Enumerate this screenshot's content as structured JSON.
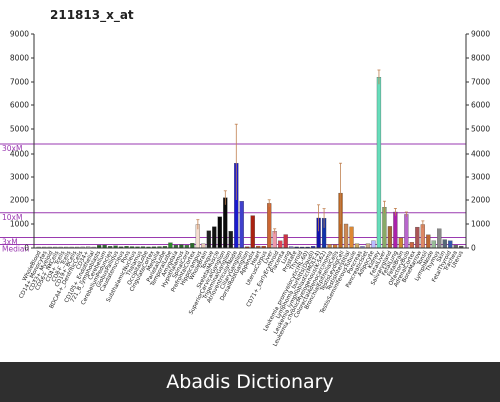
{
  "chart_data": {
    "type": "bar",
    "title": "211813_x_at",
    "y_scale": "non-linear (log-like)",
    "ylim": [
      0,
      9000
    ],
    "y_ticks": [
      "0",
      "1000",
      "2000",
      "3000",
      "4000",
      "5000",
      "6000",
      "7000",
      "8000",
      "9000"
    ],
    "reference_lines": [
      {
        "label": "30xM",
        "value": 4400,
        "color": "#9a3ab0"
      },
      {
        "label": "10xM",
        "value": 1467,
        "color": "#9a3ab0"
      },
      {
        "label": "3xM",
        "value": 440,
        "color": "#9a3ab0"
      },
      {
        "label": "Median",
        "value": 147,
        "color": "#9a3ab0"
      }
    ],
    "categories": [
      "WholeBlood",
      "CD14+_Monocytes",
      "CD33+_Myeloid",
      "CD56+_NKCells",
      "CD4+_Tcells",
      "CD8+_Tcells",
      "CD19+_BCells",
      "BDCA4+_DentriticCells",
      "CD34+",
      "CD105+_Endothelial",
      "721_B_lymphoblasts",
      "Cerebellum",
      "CerebellumPeduncles",
      "GlobusPallidus",
      "Caudatenucleus",
      "Pons",
      "SubthalamicNucleus",
      "Thalamus",
      "OccipitalLobe",
      "CingulateCortex",
      "Medulla",
      "ParietalLobe",
      "TemporalLobe",
      "Amygdala",
      "Hypothalamus",
      "SpinalCord",
      "PrefrontalCortex",
      "Hippocampus",
      "WholeBrain",
      "Tongue",
      "SkeletalMuscle",
      "SuperiorCervicalGanglion",
      "TrigeminalGanglion",
      "DorsalRootGanglion",
      "AtrioventricularNode",
      "CiliaryGanglion",
      "Appendix",
      "Heart",
      "Uterus",
      "UterusCorpus",
      "Liver",
      "CD71+_EarlyErythroid",
      "Lung",
      "Placenta",
      "Thyroid",
      "Prostate",
      "FetalThyroid",
      "Leukemia_promyelocytic(HL-60)",
      "Leukemia_lymphoblastic(MOLT-4)",
      "Lymphoma_burkitts(Daudi)",
      "Lymphoma_burkitts(Raji)",
      "Leukemia_chronicMyelogenous(K-562)",
      "Colorectaladenocarcinoma",
      "BronchialEpithelialCells",
      "SmoothMuscle",
      "TestisLeydigCell",
      "TestisInterstitial",
      "TestisGermCell",
      "TestisSeminiferousTubule",
      "Testis",
      "Pancreas",
      "PancreaticIslet",
      "Adipocyte",
      "Kidney",
      "FetalLiver",
      "FetalLung",
      "Adrenalgland",
      "Salivarygland",
      "FetalBrain",
      "OlfactoryBulb",
      "AdrenalCortex",
      "BoneMarrow",
      "Tonsil",
      "LymphNode",
      "Thymus",
      "Skin",
      "OriginalLobe",
      "Trachea"
    ],
    "visible_labels": [
      "WholeBlood",
      "CD14+_Monocytes",
      "CD33+_Myeloid",
      "CD56+_NKCells",
      "CD4+_Tcells",
      "CD8+_Tcells",
      "CD19+_BCells",
      "BDCA4+_DentriticCells",
      "CD34+",
      "CD105+_Endothelial",
      "721_B_lymphoblasts",
      "Cerebellum",
      "CerebellumPeduncles",
      "GlobusPallidus",
      "Caudatenucleus",
      "Pons",
      "SubthalamicNucleus",
      "Thalamus",
      "OccipitalLobe",
      "CingulateCortex",
      "Medulla",
      "ParietalLobe",
      "TemporalLobe",
      "Amygdala",
      "Hypothalamus",
      "SpinalCord",
      "PrefrontalCortex",
      "Hippocampus",
      "WholeBrain",
      "Tongue",
      "SkeletalMuscle",
      "SuperiorCervicalGanglion",
      "TrigeminalGanglion",
      "AtrioventricularNode",
      "CiliaryGanglion",
      "DorsalRootGanglion",
      "Appendix",
      "Heart",
      "UterusCorpus",
      "Liver",
      "CD71+_EarlyErythroid",
      "Placenta",
      "Lung",
      "Prostate",
      "Thyroid",
      "Leukemia_promyelocytic(HL-60)",
      "Lymphoma_burkitts(Daudi)",
      "Leukemia_lymphoblastic(MOLT-4)",
      "Leukemia_chronicMyelogenous(K-562)",
      "ColorectalAdenocarcinoma",
      "BronchialEpithelialCells",
      "TestisLeydigCell",
      "TestisInterstitial",
      "TestisSeminiferousTubule",
      "Pancreas",
      "PancreaticIslet",
      "Adipocyte",
      "Kidney",
      "FetalLiver",
      "Salivarygland",
      "FetalLung",
      "FetalBrain",
      "OlfactoryBulb",
      "AdrenalCortex",
      "BoneMarrow",
      "Tonsil",
      "LymphNode",
      "Thymus",
      "Skin",
      "FetalThyroid",
      "Trachea",
      "Uterus"
    ],
    "values": [
      40,
      25,
      30,
      30,
      35,
      30,
      35,
      30,
      45,
      50,
      30,
      110,
      120,
      70,
      90,
      55,
      75,
      60,
      50,
      60,
      45,
      55,
      60,
      70,
      220,
      120,
      140,
      115,
      200,
      980,
      180,
      720,
      890,
      1300,
      2100,
      700,
      3600,
      1950,
      55,
      1350,
      80,
      75,
      1860,
      700,
      300,
      560,
      65,
      45,
      35,
      40,
      70,
      1250,
      1240,
      150,
      140,
      2300,
      1000,
      880,
      180,
      70,
      180,
      300,
      7200,
      1700,
      900,
      1500,
      420,
      1400,
      240,
      870,
      980,
      550,
      300,
      800,
      350,
      300,
      120,
      80
    ],
    "errors": [
      0,
      0,
      0,
      0,
      0,
      0,
      0,
      0,
      0,
      0,
      0,
      0,
      0,
      0,
      0,
      0,
      0,
      0,
      0,
      0,
      0,
      0,
      0,
      0,
      0,
      0,
      0,
      0,
      0,
      200,
      0,
      0,
      0,
      0,
      300,
      0,
      1600,
      0,
      0,
      0,
      0,
      0,
      150,
      100,
      0,
      0,
      0,
      0,
      0,
      0,
      0,
      550,
      400,
      0,
      0,
      1300,
      0,
      0,
      0,
      0,
      0,
      0,
      300,
      250,
      0,
      150,
      0,
      100,
      0,
      0,
      150,
      0,
      0,
      0,
      0,
      0,
      0,
      0
    ],
    "colors": [
      "#cccccc",
      "#cccccc",
      "#cccccc",
      "#cccccc",
      "#cccccc",
      "#cccccc",
      "#cccccc",
      "#cccccc",
      "#cccccc",
      "#cccccc",
      "#cccccc",
      "#1f5f1f",
      "#2a6a2a",
      "#336633",
      "#2e6e2e",
      "#2a5a2a",
      "#337733",
      "#2a7a2a",
      "#2f6f2f",
      "#3a7a3a",
      "#2c6c2c",
      "#2b6b2b",
      "#3a7a3a",
      "#2f6f2f",
      "#2a8a2a",
      "#3a6a3a",
      "#2a6a2a",
      "#3a7a3a",
      "#2a6a2a",
      "#f5ddd0",
      "#e8c8b8",
      "#222222",
      "#111111",
      "#050505",
      "#0a0a0a",
      "#1a1a1a",
      "#1a1acc",
      "#4040cc",
      "#bb3311",
      "#aa2211",
      "#cc5522",
      "#cc4411",
      "#cc6633",
      "#ee99aa",
      "#dd4455",
      "#cc3344",
      "#aaaaff",
      "#2222aa",
      "#3333bb",
      "#2222aa",
      "#2222bb",
      "#1111aa",
      "#1133aa",
      "#cc8844",
      "#cc7733",
      "#bb6622",
      "#cc8855",
      "#dd8833",
      "#ccaa66",
      "#9999dd",
      "#ccaa88",
      "#bbbbff",
      "#66ddbb",
      "#88aa66",
      "#aa6633",
      "#aa22aa",
      "#cc8833",
      "#b866cc",
      "#cc6644",
      "#aa5555",
      "#dd8866",
      "#bb6633",
      "#99bb99",
      "#888888",
      "#556677",
      "#3355aa",
      "#666666",
      "#555555"
    ]
  },
  "footer": {
    "watermark": "Abadis Dictionary"
  }
}
